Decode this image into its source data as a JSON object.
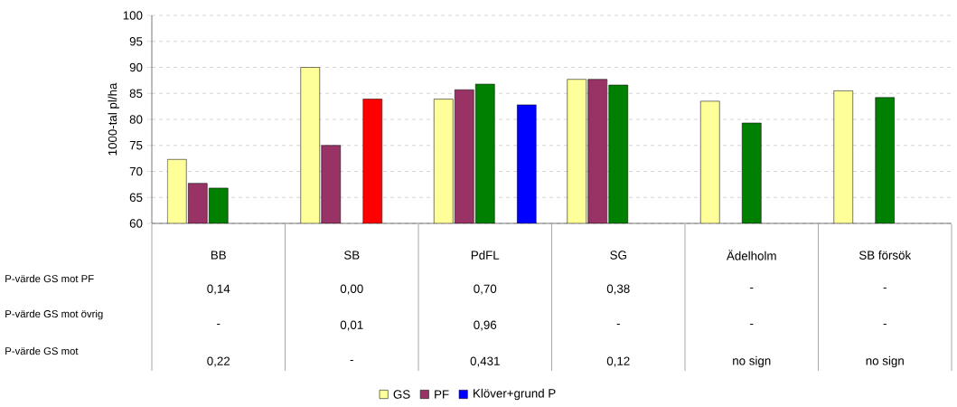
{
  "chart_data": {
    "type": "bar",
    "ylabel": "1000-tal pl/ha",
    "categories": [
      "BB",
      "SB",
      "PdFL",
      "SG",
      "Ädelholm",
      "SB försök"
    ],
    "series": [
      {
        "name": "GS",
        "color": "#ffff99",
        "values": [
          72.3,
          90.0,
          83.9,
          87.7,
          83.5,
          85.5
        ]
      },
      {
        "name": "PF",
        "color": "#993366",
        "values": [
          67.7,
          75.0,
          85.7,
          87.7,
          null,
          null
        ]
      },
      {
        "color": "#008000",
        "values": [
          66.8,
          null,
          86.8,
          86.6,
          79.3,
          84.2
        ]
      },
      {
        "color": "#ff0000",
        "values": [
          null,
          83.9,
          null,
          null,
          null,
          null
        ]
      },
      {
        "name": "Klöver+grund P",
        "color": "#0000ff",
        "values": [
          null,
          null,
          82.8,
          null,
          null,
          null
        ]
      }
    ],
    "ylim": [
      60,
      100
    ],
    "yticks": [
      60,
      65,
      70,
      75,
      80,
      85,
      90,
      95,
      100
    ],
    "grid": "y",
    "legend": "bottom",
    "annotations": [
      "P-värde GS mot PF",
      "0,14",
      "0,00",
      "0,70",
      "0,38",
      "-",
      "-",
      "P-värde GS mot övrig",
      "-",
      "0,01",
      "0,96",
      "-",
      "-",
      "-",
      "P-värde GS mot",
      "0,22",
      "-",
      "0,431",
      "0,12",
      "no sign",
      "no sign"
    ]
  }
}
